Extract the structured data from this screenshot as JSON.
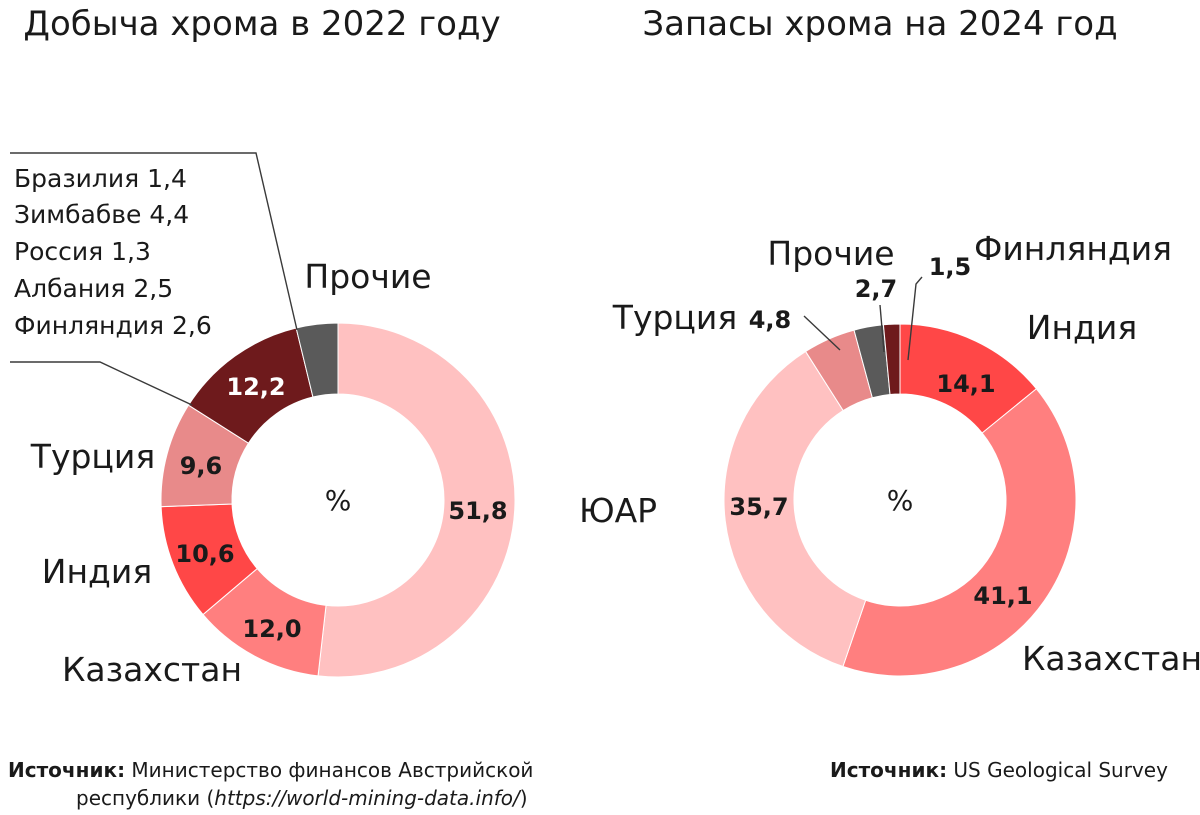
{
  "chart_data": [
    {
      "type": "pie",
      "title": "Добыча хрома в 2022 году",
      "center_label": "%",
      "slices": [
        {
          "label": "ЮАР",
          "value": 51.8,
          "value_text": "51,8",
          "color": "#ffc1c1"
        },
        {
          "label": "Казахстан",
          "value": 12.0,
          "value_text": "12,0",
          "color": "#ff7f7f"
        },
        {
          "label": "Индия",
          "value": 10.6,
          "value_text": "10,6",
          "color": "#ff4747"
        },
        {
          "label": "Турция",
          "value": 9.6,
          "value_text": "9,6",
          "color": "#e88a8a"
        },
        {
          "label": "",
          "value": 12.2,
          "value_text": "12,2",
          "color": "#6e1a1c"
        },
        {
          "label": "Прочие",
          "value": 3.8,
          "value_text": "",
          "color": "#5a5a5a"
        }
      ],
      "breakdown": {
        "lines": [
          "Бразилия 1,4",
          "Зимбабве 4,4",
          "Россия 1,3",
          "Албания 2,5",
          "Финляндия 2,6"
        ]
      },
      "source": {
        "label": "Источник:",
        "text_line1": "Министерство финансов Австрийской",
        "text_line2_prefix": "республики (",
        "url": "https://world-mining-data.info/",
        "text_line2_suffix": ")"
      }
    },
    {
      "type": "pie",
      "title": "Запасы хрома на 2024 год",
      "center_label": "%",
      "slices": [
        {
          "label": "Индия",
          "value": 14.1,
          "value_text": "14,1",
          "color": "#ff4747"
        },
        {
          "label": "Казахстан",
          "value": 41.1,
          "value_text": "41,1",
          "color": "#ff7f7f"
        },
        {
          "label": "ЮАР",
          "value": 35.7,
          "value_text": "35,7",
          "color": "#ffc1c1"
        },
        {
          "label": "Турция",
          "value": 4.8,
          "value_text": "4,8",
          "color": "#e88a8a"
        },
        {
          "label": "Прочие",
          "value": 2.7,
          "value_text": "2,7",
          "color": "#5a5a5a"
        },
        {
          "label": "Финляндия",
          "value": 1.5,
          "value_text": "1,5",
          "color": "#6e1a1c"
        }
      ],
      "source": {
        "label": "Источник:",
        "text": "US Geological Survey"
      }
    }
  ]
}
